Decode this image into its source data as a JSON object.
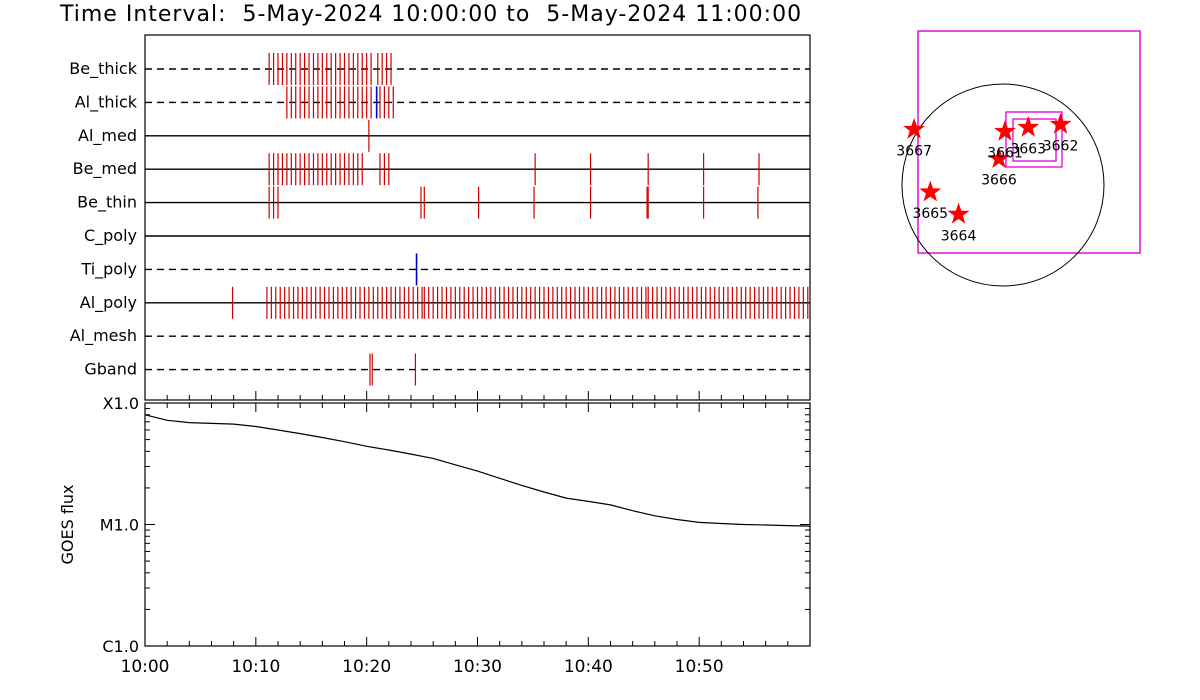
{
  "title": "Time Interval:  5-May-2024 10:00:00 to  5-May-2024 11:00:00",
  "colors": {
    "event": "#cc0000",
    "event_alt": "#0000cc",
    "box": "#dd00dd",
    "star": "#ff0000",
    "axis": "#000000"
  },
  "chart_data": [
    {
      "type": "event-timeline",
      "x_range_minutes": [
        0,
        60
      ],
      "rows": [
        {
          "label": "Be_thick",
          "line": "dashed",
          "red": [
            11.2,
            11.6,
            12.0,
            12.4,
            12.8,
            13.2,
            13.6,
            14.0,
            14.4,
            14.8,
            15.2,
            15.6,
            16.0,
            16.4,
            16.8,
            17.2,
            17.6,
            18.0,
            18.4,
            18.8,
            19.2,
            19.6,
            20.0,
            20.4,
            21.0,
            21.4,
            21.8,
            22.2
          ],
          "blue": []
        },
        {
          "label": "Al_thick",
          "line": "dashed",
          "red": [
            12.8,
            13.2,
            13.6,
            14.0,
            14.4,
            14.8,
            15.2,
            15.6,
            16.0,
            16.4,
            16.8,
            17.2,
            17.6,
            18.0,
            18.4,
            18.8,
            19.2,
            19.6,
            20.0,
            20.4,
            21.2,
            21.6,
            22.0,
            22.4
          ],
          "blue": [
            20.9
          ]
        },
        {
          "label": "Al_med",
          "line": "solid",
          "red": [
            20.2
          ],
          "blue": []
        },
        {
          "label": "Be_med",
          "line": "solid",
          "red": [
            11.2,
            11.6,
            12.0,
            12.4,
            12.8,
            13.2,
            13.6,
            14.0,
            14.4,
            14.8,
            15.2,
            15.6,
            16.0,
            16.4,
            16.8,
            17.2,
            17.6,
            18.0,
            18.4,
            18.8,
            19.2,
            19.6,
            21.2,
            21.6,
            22.0,
            35.2,
            40.2,
            45.4,
            50.4,
            55.4
          ],
          "blue": []
        },
        {
          "label": "Be_thin",
          "line": "solid",
          "red": [
            11.2,
            11.6,
            12.0,
            24.9,
            25.2,
            30.1,
            35.1,
            40.2,
            45.3,
            45.4,
            50.4,
            55.3
          ],
          "blue": []
        },
        {
          "label": "C_poly",
          "line": "solid",
          "red": [],
          "blue": []
        },
        {
          "label": "Ti_poly",
          "line": "dashed",
          "red": [],
          "blue": [
            24.5
          ]
        },
        {
          "label": "Al_poly",
          "line": "solid",
          "red": [
            7.9,
            11.0,
            11.4,
            11.8,
            12.2,
            12.6,
            13.0,
            13.4,
            13.8,
            14.2,
            14.6,
            15.0,
            15.4,
            15.8,
            16.2,
            16.6,
            17.0,
            17.4,
            17.8,
            18.2,
            18.6,
            19.0,
            19.4,
            19.8,
            20.2,
            20.6,
            21.0,
            21.4,
            21.8,
            22.2,
            22.6,
            23.0,
            23.4,
            23.8,
            24.2,
            24.6,
            25.0,
            25.2,
            25.6,
            26.0,
            26.4,
            26.8,
            27.2,
            27.6,
            28.0,
            28.4,
            28.8,
            29.2,
            29.6,
            30.0,
            30.4,
            30.8,
            31.2,
            31.6,
            32.0,
            32.4,
            32.8,
            33.2,
            33.6,
            34.0,
            34.4,
            34.8,
            35.2,
            35.6,
            36.0,
            36.4,
            36.8,
            37.2,
            37.6,
            38.0,
            38.4,
            38.8,
            39.2,
            39.6,
            40.0,
            40.4,
            40.8,
            41.2,
            41.6,
            42.0,
            42.4,
            42.8,
            43.2,
            43.6,
            44.0,
            44.4,
            44.8,
            45.2,
            45.4,
            45.8,
            46.2,
            46.6,
            47.0,
            47.4,
            47.8,
            48.2,
            48.6,
            49.0,
            49.4,
            49.8,
            50.2,
            50.6,
            51.0,
            51.4,
            51.8,
            52.2,
            52.6,
            53.0,
            53.4,
            53.8,
            54.2,
            54.6,
            55.0,
            55.4,
            55.8,
            56.2,
            56.6,
            57.0,
            57.4,
            57.8,
            58.2,
            58.6,
            59.0,
            59.4,
            59.8
          ],
          "blue": []
        },
        {
          "label": "Al_mesh",
          "line": "dashed",
          "red": [],
          "blue": []
        },
        {
          "label": "Gband",
          "line": "dashed",
          "red": [
            20.3,
            20.5,
            24.4
          ],
          "blue": []
        }
      ]
    },
    {
      "type": "line",
      "ylabel": "GOES flux",
      "ylog": true,
      "y_ticks": [
        {
          "value": 1e-06,
          "label": "C1.0"
        },
        {
          "value": 1e-05,
          "label": "M1.0"
        },
        {
          "value": 0.0001,
          "label": "X1.0"
        }
      ],
      "ylim": [
        1e-06,
        0.0001
      ],
      "x_ticks": [
        {
          "value": 0,
          "label": "10:00"
        },
        {
          "value": 10,
          "label": "10:10"
        },
        {
          "value": 20,
          "label": "10:20"
        },
        {
          "value": 30,
          "label": "10:30"
        },
        {
          "value": 40,
          "label": "10:40"
        },
        {
          "value": 50,
          "label": "10:50"
        }
      ],
      "x_range_minutes": [
        0,
        60
      ],
      "series": [
        {
          "x": [
            0,
            2,
            4,
            6,
            8,
            10,
            12,
            14,
            16,
            18,
            20,
            22,
            24,
            26,
            28,
            30,
            32,
            34,
            36,
            38,
            40,
            42,
            44,
            46,
            48,
            50,
            52,
            54,
            56,
            58,
            60
          ],
          "y": [
            8e-05,
            7.2e-05,
            6.9e-05,
            6.8e-05,
            6.7e-05,
            6.4e-05,
            6e-05,
            5.6e-05,
            5.2e-05,
            4.8e-05,
            4.4e-05,
            4.1e-05,
            3.8e-05,
            3.5e-05,
            3.1e-05,
            2.75e-05,
            2.4e-05,
            2.1e-05,
            1.85e-05,
            1.65e-05,
            1.55e-05,
            1.45e-05,
            1.3e-05,
            1.18e-05,
            1.1e-05,
            1.04e-05,
            1.02e-05,
            1e-05,
            9.9e-06,
            9.8e-06,
            9.7e-06
          ]
        }
      ]
    },
    {
      "type": "scatter",
      "stars": [
        {
          "label": "3667",
          "x": -0.88,
          "y": 0.55
        },
        {
          "label": "3665",
          "x": -0.72,
          "y": -0.07
        },
        {
          "label": "3664",
          "x": -0.44,
          "y": -0.29
        },
        {
          "label": "3666",
          "x": -0.04,
          "y": 0.26
        },
        {
          "label": "3661",
          "x": 0.02,
          "y": 0.53
        },
        {
          "label": "3663",
          "x": 0.25,
          "y": 0.57
        },
        {
          "label": "3662",
          "x": 0.57,
          "y": 0.6
        }
      ]
    }
  ]
}
